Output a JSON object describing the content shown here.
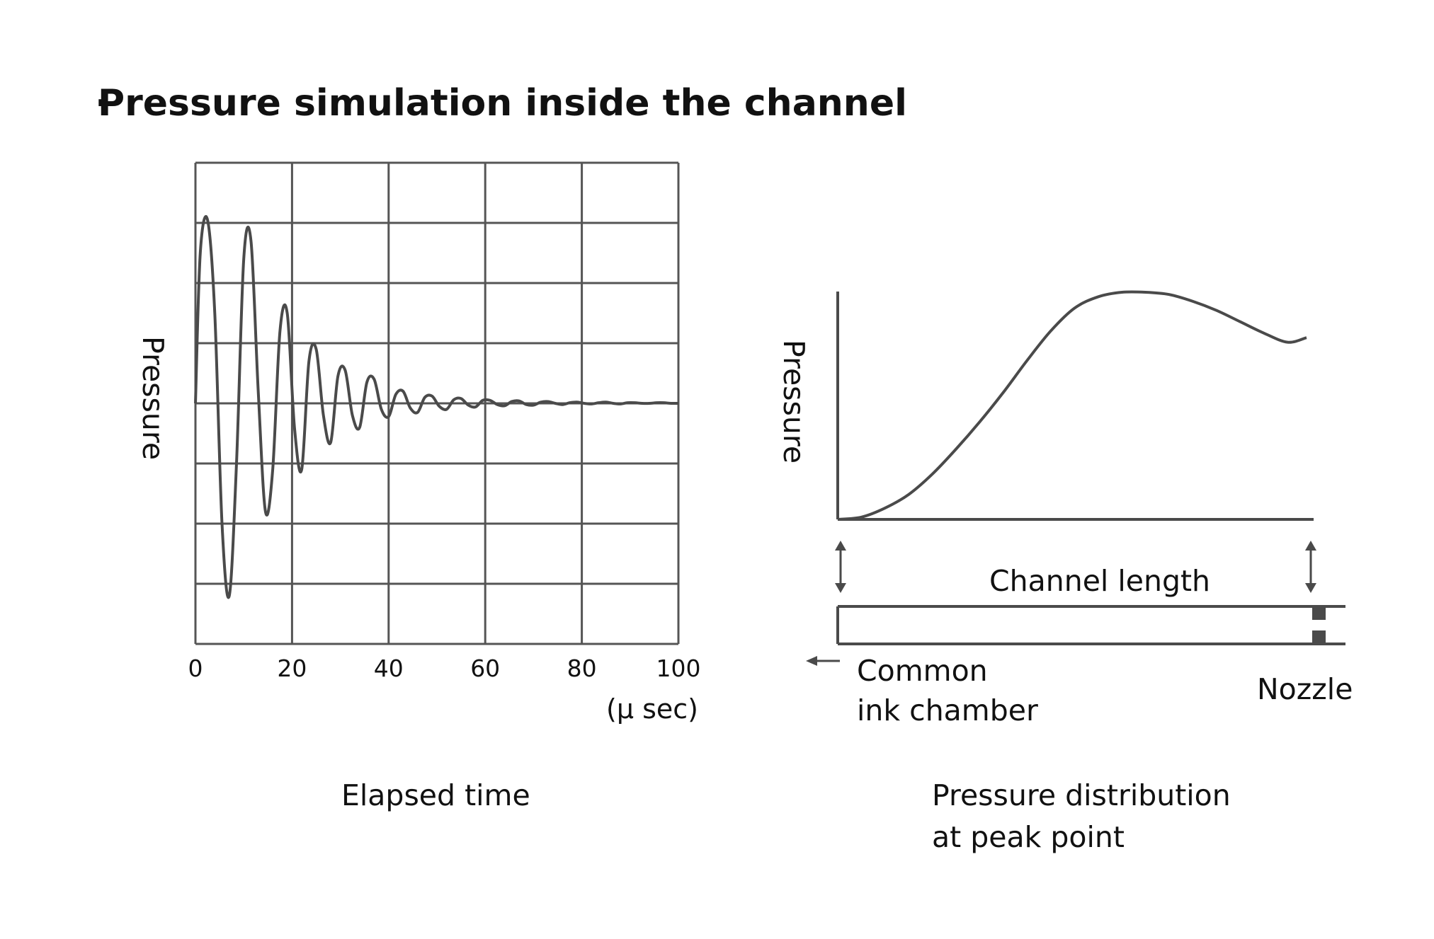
{
  "page": {
    "bullet": "·",
    "title": "Pressure simulation inside the channel"
  },
  "colors": {
    "line": "#4a4a4a",
    "grid": "#555555",
    "text": "#111111"
  },
  "chart_data": [
    {
      "type": "line",
      "title": "Elapsed time",
      "xlabel": "Elapsed time",
      "ylabel": "Pressure",
      "x_unit": "(μ sec)",
      "xlim": [
        0,
        100
      ],
      "ylim": [
        -4,
        4
      ],
      "xticks": [
        "0",
        "20",
        "40",
        "60",
        "80",
        "100"
      ],
      "grid": true,
      "series": [
        {
          "x": [
            0,
            1,
            2.5,
            4,
            5.5,
            7,
            8.5,
            10,
            11.5,
            13,
            14.5,
            16,
            17.5,
            19,
            20.5,
            22,
            23.5,
            25,
            26.5,
            28,
            29.5,
            31,
            32.5,
            34,
            35.5,
            37,
            38.5,
            40,
            41.5,
            43,
            44.5,
            46,
            47.5,
            49,
            50.5,
            52,
            53.5,
            55,
            56.5,
            58,
            59.5,
            61,
            62.5,
            64,
            65.5,
            67,
            68.5,
            70,
            71.5,
            73,
            74.5,
            76,
            77.5,
            79,
            80.5,
            82,
            83.5,
            85,
            86.5,
            88,
            89.5,
            91,
            92.5,
            94,
            95.5,
            97,
            98.5,
            100
          ],
          "y": [
            0,
            2.5,
            3.05,
            1.5,
            -2.0,
            -3.2,
            -1.0,
            2.4,
            2.7,
            0.2,
            -1.8,
            -1.1,
            1.2,
            1.5,
            -0.4,
            -1.1,
            0.7,
            0.9,
            -0.2,
            -0.65,
            0.45,
            0.55,
            -0.2,
            -0.4,
            0.35,
            0.4,
            -0.1,
            -0.22,
            0.15,
            0.2,
            -0.08,
            -0.15,
            0.1,
            0.12,
            -0.05,
            -0.1,
            0.06,
            0.08,
            -0.03,
            -0.06,
            0.05,
            0.05,
            -0.02,
            -0.04,
            0.03,
            0.04,
            -0.02,
            -0.03,
            0.02,
            0.03,
            0.0,
            -0.02,
            0.01,
            0.02,
            0.0,
            -0.01,
            0.01,
            0.02,
            0.0,
            -0.01,
            0.01,
            0.01,
            0.0,
            0.0,
            0.01,
            0.01,
            0.0,
            0.0
          ]
        }
      ]
    },
    {
      "type": "line",
      "title": "Pressure distribution\nat peak point",
      "title_lines": [
        "Pressure distribution",
        "at peak point"
      ],
      "ylabel": "Pressure",
      "xlabel": "Channel length",
      "grid": false,
      "left_label_lines": [
        "Common",
        "ink chamber"
      ],
      "right_label": "Nozzle",
      "series": [
        {
          "x": [
            0,
            0.05,
            0.1,
            0.15,
            0.2,
            0.25,
            0.3,
            0.35,
            0.4,
            0.45,
            0.5,
            0.55,
            0.6,
            0.65,
            0.7,
            0.75,
            0.8,
            0.85,
            0.9,
            0.95,
            0.99
          ],
          "y": [
            0,
            0.01,
            0.05,
            0.11,
            0.2,
            0.31,
            0.43,
            0.56,
            0.7,
            0.83,
            0.93,
            0.98,
            1.0,
            1.0,
            0.99,
            0.96,
            0.92,
            0.87,
            0.82,
            0.78,
            0.8
          ]
        }
      ]
    }
  ]
}
